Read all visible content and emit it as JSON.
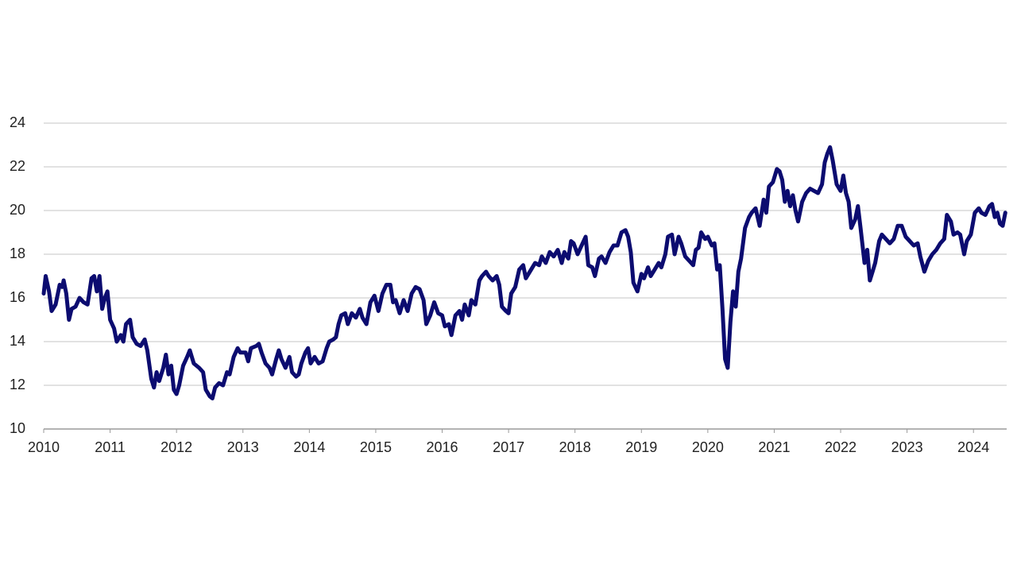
{
  "chart_data": {
    "type": "line",
    "color": "#0c0c70",
    "grid": true,
    "xlim": [
      2010,
      2024.5
    ],
    "xticks": [
      2010,
      2011,
      2012,
      2013,
      2014,
      2015,
      2016,
      2017,
      2018,
      2019,
      2020,
      2021,
      2022,
      2023,
      2024
    ],
    "ylim": [
      10,
      24
    ],
    "yticks": [
      10,
      12,
      14,
      16,
      18,
      20,
      22,
      24
    ],
    "x": [
      2010.0,
      2010.03,
      2010.08,
      2010.12,
      2010.18,
      2010.24,
      2010.28,
      2010.3,
      2010.34,
      2010.38,
      2010.42,
      2010.48,
      2010.54,
      2010.6,
      2010.66,
      2010.72,
      2010.76,
      2010.8,
      2010.84,
      2010.88,
      2010.92,
      2010.96,
      2011.0,
      2011.06,
      2011.1,
      2011.16,
      2011.2,
      2011.24,
      2011.3,
      2011.34,
      2011.4,
      2011.46,
      2011.52,
      2011.56,
      2011.62,
      2011.66,
      2011.7,
      2011.74,
      2011.8,
      2011.84,
      2011.88,
      2011.92,
      2011.96,
      2012.0,
      2012.04,
      2012.1,
      2012.16,
      2012.2,
      2012.26,
      2012.34,
      2012.4,
      2012.44,
      2012.5,
      2012.54,
      2012.58,
      2012.64,
      2012.7,
      2012.76,
      2012.8,
      2012.86,
      2012.92,
      2012.96,
      2013.04,
      2013.08,
      2013.12,
      2013.2,
      2013.24,
      2013.28,
      2013.34,
      2013.4,
      2013.44,
      2013.5,
      2013.54,
      2013.58,
      2013.64,
      2013.7,
      2013.74,
      2013.8,
      2013.84,
      2013.88,
      2013.94,
      2013.98,
      2014.02,
      2014.08,
      2014.14,
      2014.2,
      2014.26,
      2014.3,
      2014.36,
      2014.4,
      2014.44,
      2014.48,
      2014.54,
      2014.58,
      2014.64,
      2014.7,
      2014.76,
      2014.8,
      2014.86,
      2014.92,
      2014.98,
      2015.04,
      2015.1,
      2015.16,
      2015.22,
      2015.26,
      2015.3,
      2015.36,
      2015.42,
      2015.48,
      2015.54,
      2015.6,
      2015.66,
      2015.72,
      2015.76,
      2015.82,
      2015.88,
      2015.94,
      2016.0,
      2016.04,
      2016.1,
      2016.14,
      2016.2,
      2016.26,
      2016.3,
      2016.34,
      2016.4,
      2016.44,
      2016.5,
      2016.56,
      2016.6,
      2016.66,
      2016.7,
      2016.76,
      2016.82,
      2016.86,
      2016.9,
      2016.96,
      2017.0,
      2017.04,
      2017.1,
      2017.16,
      2017.22,
      2017.26,
      2017.34,
      2017.4,
      2017.46,
      2017.5,
      2017.56,
      2017.62,
      2017.68,
      2017.74,
      2017.8,
      2017.84,
      2017.9,
      2017.94,
      2017.98,
      2018.04,
      2018.1,
      2018.16,
      2018.2,
      2018.26,
      2018.3,
      2018.36,
      2018.4,
      2018.46,
      2018.52,
      2018.58,
      2018.64,
      2018.7,
      2018.76,
      2018.8,
      2018.84,
      2018.88,
      2018.94,
      2019.0,
      2019.04,
      2019.1,
      2019.14,
      2019.2,
      2019.26,
      2019.3,
      2019.36,
      2019.4,
      2019.46,
      2019.5,
      2019.56,
      2019.6,
      2019.66,
      2019.72,
      2019.78,
      2019.82,
      2019.86,
      2019.9,
      2019.96,
      2020.0,
      2020.06,
      2020.1,
      2020.14,
      2020.18,
      2020.22,
      2020.26,
      2020.3,
      2020.34,
      2020.38,
      2020.42,
      2020.46,
      2020.5,
      2020.56,
      2020.62,
      2020.66,
      2020.72,
      2020.78,
      2020.84,
      2020.88,
      2020.92,
      2020.98,
      2021.04,
      2021.08,
      2021.12,
      2021.16,
      2021.2,
      2021.24,
      2021.28,
      2021.32,
      2021.36,
      2021.42,
      2021.48,
      2021.54,
      2021.6,
      2021.66,
      2021.72,
      2021.76,
      2021.8,
      2021.84,
      2021.88,
      2021.94,
      2022.0,
      2022.04,
      2022.08,
      2022.12,
      2022.16,
      2022.22,
      2022.26,
      2022.3,
      2022.36,
      2022.4,
      2022.44,
      2022.48,
      2022.52,
      2022.58,
      2022.62,
      2022.68,
      2022.74,
      2022.8,
      2022.86,
      2022.92,
      2022.98,
      2023.04,
      2023.1,
      2023.16,
      2023.2,
      2023.26,
      2023.32,
      2023.38,
      2023.44,
      2023.5,
      2023.56,
      2023.6,
      2023.66,
      2023.7,
      2023.76,
      2023.8,
      2023.86,
      2023.9,
      2023.96,
      2024.02,
      2024.08,
      2024.12,
      2024.18,
      2024.24,
      2024.28,
      2024.32,
      2024.36,
      2024.4,
      2024.44,
      2024.48
    ],
    "values": [
      16.2,
      17.0,
      16.3,
      15.4,
      15.7,
      16.6,
      16.5,
      16.8,
      16.2,
      15.0,
      15.5,
      15.6,
      16.0,
      15.8,
      15.7,
      16.9,
      17.0,
      16.3,
      17.0,
      15.5,
      16.0,
      16.3,
      15.0,
      14.6,
      14.0,
      14.3,
      14.0,
      14.8,
      15.0,
      14.2,
      13.9,
      13.8,
      14.1,
      13.6,
      12.3,
      11.9,
      12.6,
      12.2,
      12.8,
      13.4,
      12.5,
      12.9,
      11.8,
      11.6,
      12.0,
      12.9,
      13.3,
      13.6,
      13.0,
      12.8,
      12.6,
      11.8,
      11.5,
      11.4,
      11.9,
      12.1,
      12.0,
      12.6,
      12.5,
      13.3,
      13.7,
      13.5,
      13.5,
      13.1,
      13.7,
      13.8,
      13.9,
      13.5,
      13.0,
      12.8,
      12.5,
      13.2,
      13.6,
      13.2,
      12.8,
      13.3,
      12.6,
      12.4,
      12.5,
      13.0,
      13.5,
      13.7,
      13.0,
      13.3,
      13.0,
      13.1,
      13.7,
      14.0,
      14.1,
      14.2,
      14.8,
      15.2,
      15.3,
      14.8,
      15.3,
      15.1,
      15.5,
      15.1,
      14.8,
      15.8,
      16.1,
      15.4,
      16.2,
      16.6,
      16.6,
      15.8,
      15.9,
      15.3,
      15.9,
      15.4,
      16.2,
      16.5,
      16.4,
      15.9,
      14.8,
      15.2,
      15.8,
      15.3,
      15.2,
      14.7,
      14.8,
      14.3,
      15.2,
      15.4,
      15.0,
      15.7,
      15.2,
      15.9,
      15.7,
      16.8,
      17.0,
      17.2,
      17.0,
      16.8,
      17.0,
      16.6,
      15.6,
      15.4,
      15.3,
      16.2,
      16.5,
      17.3,
      17.5,
      16.9,
      17.3,
      17.6,
      17.5,
      17.9,
      17.6,
      18.1,
      17.9,
      18.2,
      17.6,
      18.1,
      17.8,
      18.6,
      18.5,
      18.0,
      18.4,
      18.8,
      17.5,
      17.4,
      17.0,
      17.8,
      17.9,
      17.6,
      18.1,
      18.4,
      18.4,
      19.0,
      19.1,
      18.8,
      18.1,
      16.7,
      16.3,
      17.1,
      16.9,
      17.4,
      17.0,
      17.3,
      17.6,
      17.4,
      18.0,
      18.8,
      18.9,
      18.0,
      18.8,
      18.5,
      17.9,
      17.7,
      17.5,
      18.2,
      18.3,
      19.0,
      18.7,
      18.8,
      18.4,
      18.5,
      17.3,
      17.5,
      15.5,
      13.2,
      12.8,
      14.9,
      16.3,
      15.6,
      17.2,
      17.8,
      19.2,
      19.7,
      19.9,
      20.1,
      19.3,
      20.5,
      19.9,
      21.1,
      21.3,
      21.9,
      21.8,
      21.4,
      20.4,
      20.9,
      20.2,
      20.7,
      20.0,
      19.5,
      20.4,
      20.8,
      21.0,
      20.9,
      20.8,
      21.2,
      22.2,
      22.6,
      22.9,
      22.3,
      21.2,
      20.9,
      21.6,
      20.8,
      20.4,
      19.2,
      19.6,
      20.2,
      19.2,
      17.6,
      18.2,
      16.8,
      17.2,
      17.6,
      18.6,
      18.9,
      18.7,
      18.5,
      18.7,
      19.3,
      19.3,
      18.8,
      18.6,
      18.4,
      18.5,
      17.9,
      17.2,
      17.7,
      18.0,
      18.2,
      18.5,
      18.7,
      19.8,
      19.5,
      18.9,
      19.0,
      18.9,
      18.0,
      18.6,
      18.9,
      19.9,
      20.1,
      19.9,
      19.8,
      20.2,
      20.3,
      19.7,
      19.9,
      19.4,
      19.3,
      19.9
    ]
  }
}
